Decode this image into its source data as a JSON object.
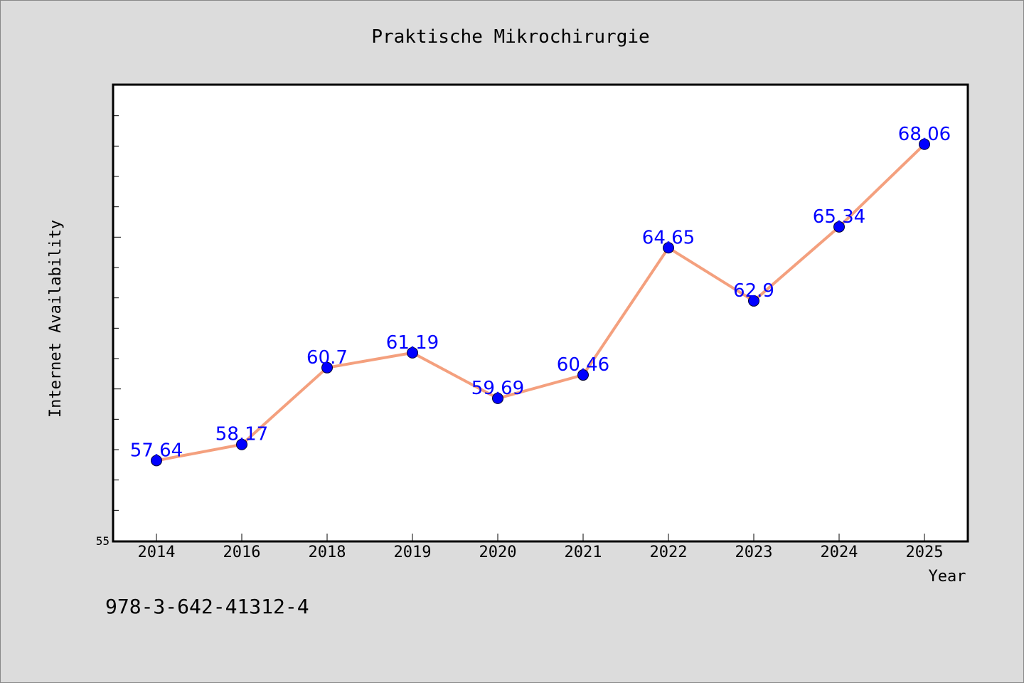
{
  "chart_data": {
    "type": "line",
    "title": "Praktische Mikrochirurgie",
    "xlabel": "Year",
    "ylabel": "Internet Availability",
    "categories": [
      "2014",
      "2016",
      "2018",
      "2019",
      "2020",
      "2021",
      "2022",
      "2023",
      "2024",
      "2025"
    ],
    "series": [
      {
        "values": [
          57.64,
          58.17,
          60.7,
          61.19,
          59.69,
          60.46,
          64.65,
          62.9,
          65.34,
          68.06
        ],
        "color": "#f4a07e",
        "marker_color": "#0000ff"
      }
    ],
    "ylim": [
      55,
      70
    ],
    "y_tick_labels": [
      "55"
    ],
    "grid": false,
    "data_labels": true
  },
  "footer_text": "978-3-642-41312-4",
  "colors": {
    "background": "#dcdcdc",
    "plot_background": "#ffffff",
    "line": "#f4a07e",
    "marker": "#0000ff",
    "data_label": "#0000ff"
  }
}
